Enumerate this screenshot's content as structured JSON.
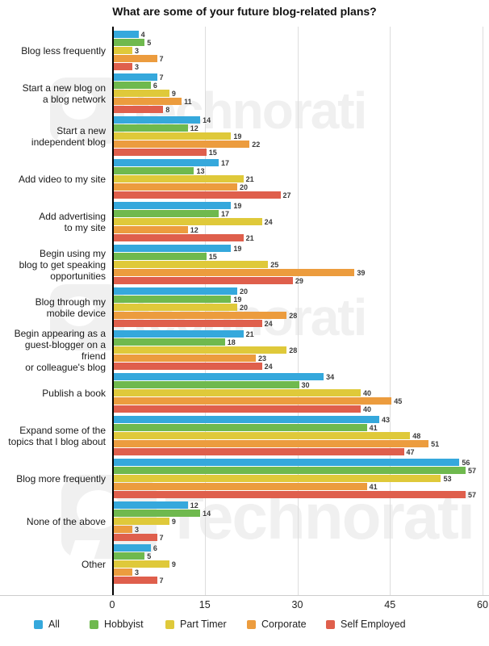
{
  "chart_data": {
    "type": "bar",
    "orientation": "horizontal",
    "title": "What are some of your future blog-related plans?",
    "xlabel": "",
    "ylabel": "",
    "xlim": [
      0,
      60
    ],
    "x_ticks": [
      0,
      15,
      30,
      45,
      60
    ],
    "grid": true,
    "legend_position": "bottom",
    "categories": [
      "Blog less frequently",
      "Start a new blog on\na blog network",
      "Start a new\nindependent blog",
      "Add video to my site",
      "Add advertising\nto my site",
      "Begin using my\nblog to get speaking\nopportunities",
      "Blog through my\nmobile device",
      "Begin appearing as a\nguest-blogger on a friend\nor colleague's blog",
      "Publish a book",
      "Expand some of the\ntopics that I blog about",
      "Blog more frequently",
      "None of the above",
      "Other"
    ],
    "series": [
      {
        "name": "All",
        "color": "#35A8DC",
        "values": [
          4,
          7,
          14,
          17,
          19,
          19,
          20,
          21,
          34,
          43,
          56,
          12,
          6
        ]
      },
      {
        "name": "Hobbyist",
        "color": "#6FB94E",
        "values": [
          5,
          6,
          12,
          13,
          17,
          15,
          19,
          18,
          30,
          41,
          57,
          14,
          5
        ]
      },
      {
        "name": "Part Timer",
        "color": "#DFC93A",
        "values": [
          3,
          9,
          19,
          21,
          24,
          25,
          20,
          28,
          40,
          48,
          53,
          9,
          9
        ]
      },
      {
        "name": "Corporate",
        "color": "#EC9C3E",
        "values": [
          7,
          11,
          22,
          20,
          12,
          39,
          28,
          23,
          45,
          51,
          41,
          3,
          3
        ]
      },
      {
        "name": "Self Employed",
        "color": "#DF5F4C",
        "values": [
          3,
          8,
          15,
          27,
          21,
          29,
          24,
          24,
          40,
          47,
          57,
          7,
          7
        ]
      }
    ]
  },
  "watermark": {
    "text_lower": "technorati",
    "text_cap": "Technorati",
    "color": "#f0f0f0"
  }
}
